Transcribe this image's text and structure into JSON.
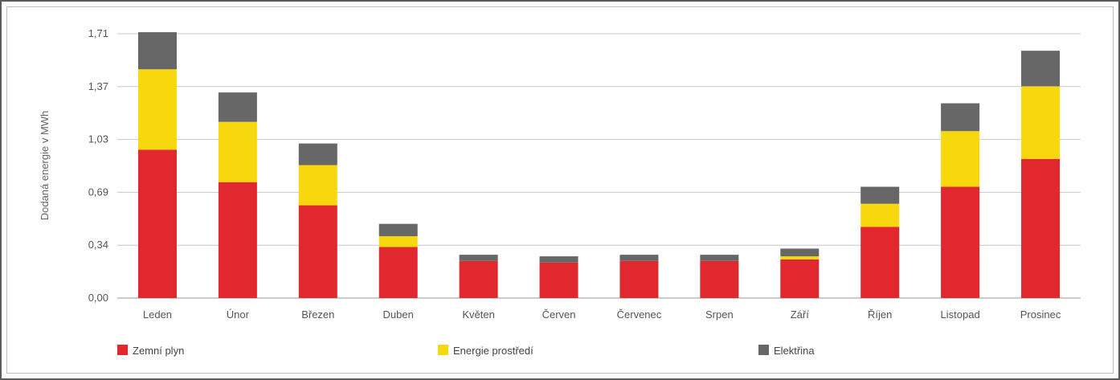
{
  "chart_data": {
    "type": "bar",
    "stacked": true,
    "title": "",
    "xlabel": "",
    "ylabel": "Dodaná energie v MWh",
    "ylim": [
      0,
      1.71
    ],
    "yticks": [
      "0,00",
      "0,34",
      "0,69",
      "1,03",
      "1,37",
      "1,71"
    ],
    "ytick_values": [
      0,
      0.342,
      0.684,
      1.026,
      1.368,
      1.71
    ],
    "grid": true,
    "legend_position": "bottom",
    "categories": [
      "Leden",
      "Únor",
      "Březen",
      "Duben",
      "Květen",
      "Červen",
      "Červenec",
      "Srpen",
      "Září",
      "Říjen",
      "Listopad",
      "Prosinec"
    ],
    "series": [
      {
        "name": "Zemní plyn",
        "color": "#e0282e",
        "values": [
          0.96,
          0.75,
          0.6,
          0.33,
          0.24,
          0.23,
          0.24,
          0.24,
          0.25,
          0.46,
          0.72,
          0.9
        ]
      },
      {
        "name": "Energie prostředí",
        "color": "#f7d80f",
        "values": [
          0.52,
          0.39,
          0.26,
          0.07,
          0.0,
          0.0,
          0.0,
          0.0,
          0.02,
          0.15,
          0.36,
          0.47
        ]
      },
      {
        "name": "Elektřina",
        "color": "#676767",
        "values": [
          0.24,
          0.19,
          0.14,
          0.08,
          0.04,
          0.04,
          0.04,
          0.04,
          0.05,
          0.11,
          0.18,
          0.23
        ]
      }
    ]
  }
}
